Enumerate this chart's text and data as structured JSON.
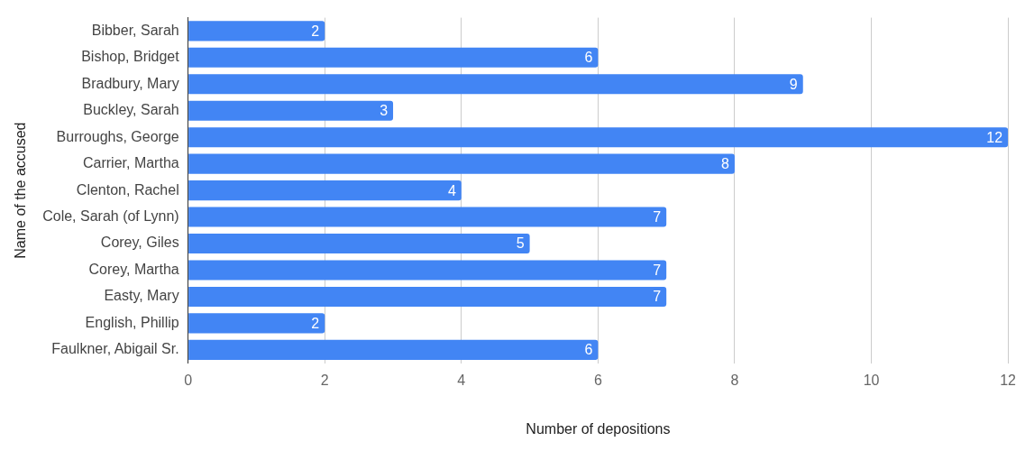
{
  "chart_data": {
    "type": "bar",
    "orientation": "horizontal",
    "xlabel": "Number of depositions",
    "ylabel": "Name of the accused",
    "categories": [
      "Bibber, Sarah",
      "Bishop, Bridget",
      "Bradbury, Mary",
      "Buckley, Sarah",
      "Burroughs, George",
      "Carrier, Martha",
      "Clenton, Rachel",
      "Cole, Sarah (of Lynn)",
      "Corey, Giles",
      "Corey, Martha",
      "Easty, Mary",
      "English, Phillip",
      "Faulkner, Abigail Sr."
    ],
    "values": [
      2,
      6,
      9,
      3,
      12,
      8,
      4,
      7,
      5,
      7,
      7,
      2,
      6
    ],
    "color": "#4285f4",
    "xlim": [
      0,
      12
    ],
    "xticks": [
      0,
      2,
      4,
      6,
      8,
      10,
      12
    ],
    "grid": "x",
    "data_labels": true,
    "legend": false
  }
}
